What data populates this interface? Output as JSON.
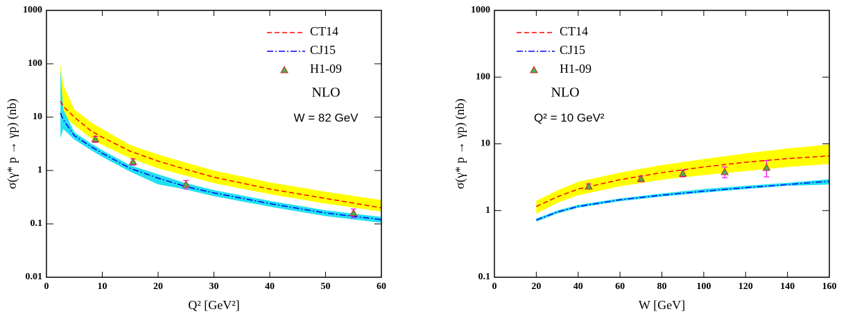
{
  "chart_data": [
    {
      "type": "line",
      "xlabel": "Q² [GeV²]",
      "ylabel": "σ(γ* p → γp) (nb)",
      "xlim": [
        0,
        60
      ],
      "xticks": [
        0,
        10,
        20,
        30,
        40,
        50,
        60
      ],
      "ylim": [
        0.01,
        1000
      ],
      "yticks": [
        0.01,
        0.1,
        1,
        10,
        100,
        1000
      ],
      "log_y": true,
      "legend": "upper right",
      "series": [
        {
          "name": "CT14",
          "style": "dashed",
          "color": "#ff0000",
          "band_color": "#ffff00",
          "x": [
            2.5,
            3,
            5,
            8,
            10,
            15,
            20,
            25,
            30,
            40,
            50,
            60
          ],
          "values": [
            20,
            16,
            10,
            5.5,
            4.2,
            2.3,
            1.5,
            1.05,
            0.75,
            0.45,
            0.3,
            0.2
          ],
          "band_low": [
            10,
            11,
            7,
            4,
            3,
            1.7,
            1.1,
            0.8,
            0.58,
            0.36,
            0.24,
            0.17
          ],
          "band_high": [
            100,
            40,
            14,
            8,
            6,
            3,
            2,
            1.4,
            1,
            0.6,
            0.4,
            0.28
          ]
        },
        {
          "name": "CJ15",
          "style": "dashdot",
          "color": "#0000ff",
          "band_color": "#22e0f0",
          "x": [
            2.5,
            3,
            5,
            8,
            10,
            15,
            20,
            25,
            30,
            40,
            50,
            60
          ],
          "values": [
            12,
            9,
            4.5,
            2.8,
            2.1,
            1.1,
            0.72,
            0.5,
            0.38,
            0.24,
            0.16,
            0.12
          ],
          "band_low": [
            4,
            6,
            3.8,
            2.4,
            1.8,
            0.95,
            0.55,
            0.44,
            0.33,
            0.21,
            0.14,
            0.105
          ],
          "band_high": [
            80,
            14,
            5.2,
            3.2,
            2.4,
            1.25,
            0.85,
            0.58,
            0.43,
            0.27,
            0.18,
            0.135
          ]
        },
        {
          "name": "H1-09",
          "style": "markers",
          "color": "#4caf50",
          "error_color": "#ff00ff",
          "x": [
            8.75,
            15.5,
            25,
            55
          ],
          "values": [
            3.87,
            1.46,
            0.55,
            0.16
          ],
          "errors": [
            0.5,
            0.2,
            0.1,
            0.03
          ]
        }
      ],
      "annotations": [
        {
          "text": "NLO",
          "color": "#ff0000",
          "font": "serif"
        },
        {
          "text": "W = 82 GeV",
          "color": "#000000",
          "font": "sans"
        }
      ]
    },
    {
      "type": "line",
      "xlabel": "W [GeV]",
      "ylabel": "σ(γ* p → γp) (nb)",
      "xlim": [
        0,
        160
      ],
      "xticks": [
        0,
        20,
        40,
        60,
        80,
        100,
        120,
        140,
        160
      ],
      "ylim": [
        0.1,
        1000
      ],
      "yticks": [
        0.1,
        1,
        10,
        100,
        1000
      ],
      "log_y": true,
      "legend": "upper left",
      "series": [
        {
          "name": "CT14",
          "style": "dashed",
          "color": "#ff0000",
          "band_color": "#ffff00",
          "x": [
            20,
            30,
            40,
            60,
            80,
            100,
            120,
            140,
            160
          ],
          "values": [
            1.15,
            1.6,
            2.1,
            2.9,
            3.7,
            4.5,
            5.3,
            6,
            6.6
          ],
          "band_low": [
            0.9,
            1.3,
            1.7,
            2.3,
            2.9,
            3.4,
            3.9,
            4.5,
            5
          ],
          "band_high": [
            1.4,
            2,
            2.7,
            3.7,
            4.8,
            5.9,
            7.2,
            8.5,
            9.8
          ]
        },
        {
          "name": "CJ15",
          "style": "dashdot",
          "color": "#0000ff",
          "band_color": "#22e0f0",
          "x": [
            20,
            30,
            40,
            60,
            80,
            100,
            120,
            140,
            160
          ],
          "values": [
            0.72,
            0.95,
            1.15,
            1.45,
            1.7,
            1.95,
            2.2,
            2.45,
            2.75
          ],
          "band_low": [
            0.68,
            0.9,
            1.1,
            1.38,
            1.62,
            1.85,
            2.1,
            2.35,
            2.45
          ],
          "band_high": [
            0.76,
            1,
            1.22,
            1.52,
            1.8,
            2.1,
            2.35,
            2.6,
            2.95
          ]
        },
        {
          "name": "H1-09",
          "style": "markers",
          "color": "#4caf50",
          "error_color": "#ff00ff",
          "x": [
            45,
            70,
            90,
            110,
            130
          ],
          "values": [
            2.3,
            3.0,
            3.6,
            3.8,
            4.4
          ],
          "errors": [
            0.2,
            0.3,
            0.4,
            0.7,
            1.2
          ]
        }
      ],
      "annotations": [
        {
          "text": "NLO",
          "color": "#ff0000",
          "font": "serif"
        },
        {
          "text": "Q² = 10 GeV²",
          "color": "#000000",
          "font": "sans"
        }
      ]
    }
  ]
}
